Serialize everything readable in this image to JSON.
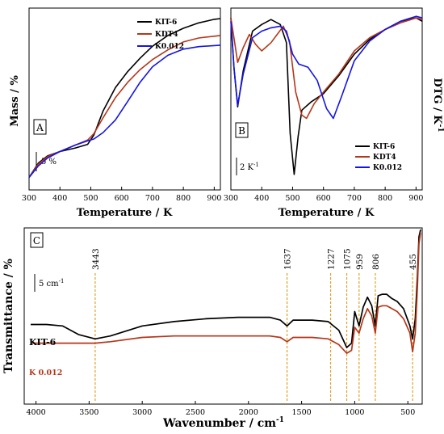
{
  "colors": {
    "kit6": "#000000",
    "kdt4": "#b5361a",
    "k0012": "#1414e6",
    "annotation": "#e0a020"
  },
  "chart_data": [
    {
      "panel": "A",
      "type": "line",
      "xlabel": "Temperature / K",
      "ylabel": "Mass / %",
      "xlim": [
        300,
        920
      ],
      "xticks": [
        "300",
        "400",
        "500",
        "600",
        "700",
        "800",
        "900"
      ],
      "scale_bar": "5 %",
      "legend_position": "top-right",
      "series": [
        {
          "name": "KIT-6",
          "color": "#000000",
          "x": [
            300,
            330,
            360,
            400,
            450,
            490,
            510,
            540,
            580,
            620,
            660,
            700,
            750,
            800,
            850,
            900,
            920
          ],
          "y": [
            100,
            96.0,
            94.0,
            92.8,
            91.8,
            90.8,
            88.2,
            81.5,
            75.0,
            70.5,
            66.8,
            63.5,
            60.5,
            58.5,
            57.0,
            56.0,
            55.8
          ]
        },
        {
          "name": "KDT4",
          "color": "#b5361a",
          "x": [
            300,
            330,
            360,
            400,
            450,
            490,
            510,
            540,
            580,
            620,
            660,
            700,
            750,
            800,
            850,
            900,
            920
          ],
          "y": [
            100,
            96.3,
            94.2,
            92.8,
            91.0,
            89.6,
            87.8,
            83.4,
            77.8,
            73.5,
            70.0,
            67.2,
            64.5,
            62.3,
            61.2,
            60.7,
            60.5
          ]
        },
        {
          "name": "K0.012",
          "color": "#1414e6",
          "x": [
            300,
            330,
            360,
            400,
            450,
            490,
            510,
            540,
            580,
            620,
            660,
            700,
            750,
            800,
            850,
            900,
            920
          ],
          "y": [
            100,
            96.8,
            94.6,
            92.8,
            91.0,
            89.8,
            89.3,
            87.5,
            84.0,
            78.8,
            73.5,
            69.2,
            66.0,
            64.3,
            63.6,
            63.3,
            63.2
          ]
        }
      ]
    },
    {
      "panel": "B",
      "type": "line",
      "xlabel": "Temperature / K",
      "ylabel": "DTG / K",
      "ylabel_superscript": "-1",
      "xlim": [
        300,
        920
      ],
      "xticks": [
        "300",
        "400",
        "500",
        "600",
        "700",
        "800",
        "900"
      ],
      "scale_bar": "2 K",
      "scale_bar_superscript": "-1",
      "legend_position": "bottom-right",
      "series": [
        {
          "name": "KIT-6",
          "color": "#000000",
          "x": [
            300,
            310,
            322,
            340,
            370,
            400,
            430,
            460,
            480,
            492,
            505,
            518,
            530,
            560,
            600,
            650,
            700,
            750,
            800,
            850,
            900,
            920
          ],
          "y": [
            10.0,
            7.0,
            4.6,
            6.8,
            9.2,
            9.6,
            9.9,
            9.6,
            8.5,
            3.0,
            0.5,
            2.8,
            4.4,
            4.9,
            5.4,
            6.5,
            7.8,
            8.7,
            9.3,
            9.8,
            10.0,
            9.8
          ]
        },
        {
          "name": "KDT4",
          "color": "#b5361a",
          "x": [
            300,
            310,
            322,
            340,
            360,
            380,
            400,
            430,
            470,
            490,
            510,
            530,
            545,
            570,
            600,
            650,
            700,
            750,
            800,
            850,
            900,
            920
          ],
          "y": [
            10.0,
            8.8,
            7.3,
            8.2,
            9.0,
            8.4,
            8.0,
            8.5,
            9.5,
            8.6,
            5.5,
            4.1,
            3.9,
            4.8,
            5.5,
            6.6,
            8.0,
            8.8,
            9.3,
            9.7,
            10.0,
            9.9
          ]
        },
        {
          "name": "K0.012",
          "color": "#1414e6",
          "x": [
            300,
            310,
            322,
            340,
            370,
            400,
            430,
            460,
            480,
            500,
            520,
            550,
            580,
            610,
            632,
            660,
            700,
            750,
            800,
            850,
            900,
            920
          ],
          "y": [
            9.8,
            7.0,
            4.7,
            6.6,
            8.8,
            9.2,
            9.4,
            9.5,
            9.2,
            7.8,
            7.2,
            7.0,
            6.2,
            4.5,
            3.9,
            5.3,
            7.4,
            8.6,
            9.3,
            9.8,
            10.1,
            10.0
          ]
        }
      ]
    },
    {
      "panel": "C",
      "type": "line",
      "xlabel": "Wavenumber / cm",
      "xlabel_superscript": "-1",
      "ylabel": "Transmittance / %",
      "xlim": [
        4050,
        380
      ],
      "xticks": [
        "4000",
        "3500",
        "3000",
        "2500",
        "2000",
        "1500",
        "1000",
        "500"
      ],
      "scale_bar": "5 cm",
      "scale_bar_superscript": "-1",
      "peak_labels": [
        "3443",
        "1637",
        "1227",
        "1075",
        "959",
        "806",
        "455"
      ],
      "peak_positions": [
        3443,
        1637,
        1227,
        1075,
        959,
        806,
        455
      ],
      "series": [
        {
          "name": "KIT-6",
          "color": "#000000",
          "x": [
            4050,
            3900,
            3750,
            3600,
            3443,
            3300,
            3000,
            2700,
            2400,
            2100,
            1800,
            1700,
            1637,
            1580,
            1400,
            1250,
            1150,
            1075,
            1030,
            1000,
            959,
            920,
            880,
            840,
            806,
            780,
            740,
            700,
            650,
            600,
            540,
            480,
            455,
            430,
            410,
            395,
            380
          ],
          "y": [
            34,
            34,
            33,
            27,
            24,
            26,
            33,
            36,
            38,
            39,
            39,
            37,
            33,
            37,
            37,
            36,
            30,
            18,
            21,
            43,
            33,
            46,
            53,
            47,
            33,
            54,
            55,
            55,
            52,
            50,
            45,
            33,
            24,
            38,
            68,
            95,
            100
          ]
        },
        {
          "name": "K 0.012",
          "color": "#b5361a",
          "x": [
            4050,
            3900,
            3750,
            3600,
            3443,
            3300,
            3000,
            2700,
            2400,
            2100,
            1800,
            1700,
            1637,
            1580,
            1400,
            1250,
            1150,
            1075,
            1030,
            1000,
            959,
            920,
            880,
            840,
            806,
            780,
            740,
            700,
            650,
            600,
            540,
            480,
            455,
            430,
            410,
            395,
            380
          ],
          "y": [
            21,
            21,
            21,
            21,
            21,
            22,
            25,
            26,
            26,
            26,
            26,
            25,
            22,
            25,
            25,
            24,
            20,
            14,
            16,
            32,
            28,
            38,
            45,
            40,
            28,
            46,
            47,
            47,
            45,
            43,
            38,
            28,
            15,
            28,
            60,
            90,
            98
          ]
        }
      ]
    }
  ]
}
